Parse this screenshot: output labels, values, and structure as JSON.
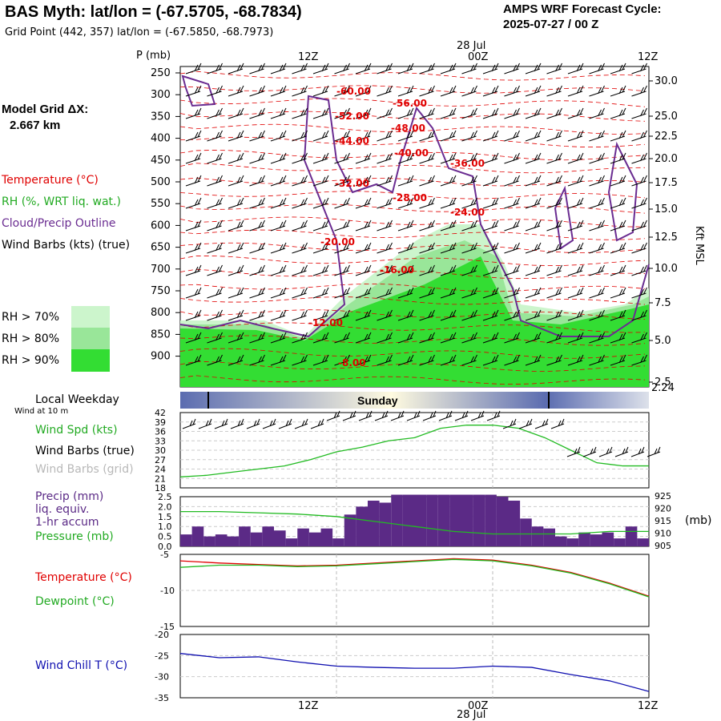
{
  "header": {
    "title": "BAS Myth:  lat/lon = (-67.5705, -68.7834)",
    "grid_point": "Grid Point (442, 357) lat/lon = (-67.5850, -68.7973)",
    "cycle_line1": "AMPS WRF Forecast Cycle:",
    "cycle_line2": "2025-07-27 / 00  Z"
  },
  "left_panel": {
    "model_grid_line1": "Model Grid ΔX:",
    "model_grid_line2": "2.667 km",
    "legend_temperature": "Temperature (°C)",
    "legend_rh": "RH (%, WRT liq. wat.)",
    "legend_cloud": "Cloud/Precip Outline",
    "legend_wind": "Wind Barbs (kts) (true)",
    "rh70": "RH > 70%",
    "rh80": "RH > 80%",
    "rh90": "RH > 90%"
  },
  "colors": {
    "temperature": "#e00000",
    "rh70": "#ccf5cc",
    "rh80": "#99e699",
    "rh90": "#33dd33",
    "cloud": "#6a2c91",
    "dewpoint": "#22bb22",
    "windchill": "#1010b0",
    "precip": "#5b2a86",
    "weekday_bar": "#5b6cb0"
  },
  "time_axis": {
    "date_label": "28 Jul",
    "ticks": [
      "12Z",
      "00Z",
      "12Z"
    ]
  },
  "sounding": {
    "pressure_unit_label": "P (mb)",
    "pressure_ticks": [
      "250",
      "300",
      "350",
      "400",
      "450",
      "500",
      "550",
      "600",
      "650",
      "700",
      "750",
      "800",
      "850",
      "900"
    ],
    "height_ticks": [
      "30.0",
      "25.0",
      "22.5",
      "20.0",
      "17.5",
      "15.0",
      "12.5",
      "10.0",
      "7.5",
      "5.0",
      "2.5"
    ],
    "height_unit_label": "Kft MSL",
    "surface_height": "2.24"
  },
  "weekday": {
    "title": "Local Weekday",
    "wind_note": "Wind at 10 m",
    "day": "Sunday"
  },
  "wind_panel": {
    "label_speed": "Wind Spd (kts)",
    "label_true": "Wind Barbs (true)",
    "label_grid": "Wind Barbs (grid)",
    "yticks": [
      "42",
      "39",
      "36",
      "33",
      "30",
      "27",
      "24",
      "21",
      "18"
    ]
  },
  "precip_panel": {
    "label1": "Precip (mm)",
    "label2": "liq. equiv.",
    "label3": "1-hr accum",
    "label4": "Pressure (mb)",
    "yticks_left": [
      "2.5",
      "2.0",
      "1.5",
      "1.0",
      "0.5",
      "0.0"
    ],
    "yticks_right": [
      "925",
      "920",
      "915",
      "910",
      "905"
    ],
    "right_unit": "(mb)"
  },
  "temp_panel": {
    "label_temp": "Temperature (°C)",
    "label_dew": "Dewpoint (°C)",
    "yticks": [
      "-5",
      "-10",
      "-15"
    ]
  },
  "chill_panel": {
    "label": "Wind Chill T (°C)",
    "yticks": [
      "-20",
      "-25",
      "-30",
      "-35"
    ]
  },
  "chart_data": [
    {
      "type": "line",
      "title": "Wind Spd (kts)",
      "x_hours": [
        0,
        2,
        4,
        6,
        8,
        10,
        12,
        14,
        16,
        18,
        20,
        22,
        24,
        26,
        28,
        30,
        32,
        34,
        36
      ],
      "values": [
        21.5,
        22,
        23,
        24,
        25,
        27,
        29.5,
        31,
        33,
        34,
        37,
        38,
        38,
        37,
        34,
        30,
        26,
        25,
        25
      ],
      "ylim": [
        18,
        42
      ]
    },
    {
      "type": "bar",
      "title": "Precip (mm) liq. equiv. 1-hr accum",
      "values": [
        0.6,
        1.0,
        0.5,
        0.6,
        0.5,
        1.0,
        0.7,
        1.0,
        0.8,
        0.4,
        0.9,
        0.7,
        0.9,
        0.4,
        1.6,
        2.0,
        2.3,
        2.2,
        2.6,
        2.6,
        2.6,
        2.6,
        2.6,
        2.6,
        2.6,
        2.6,
        2.6,
        2.5,
        2.3,
        1.4,
        1.0,
        0.9,
        0.5,
        0.4,
        0.7,
        0.6,
        0.7,
        0.4,
        1.0,
        0.4
      ],
      "ylim": [
        0,
        2.5
      ]
    },
    {
      "type": "line",
      "title": "Pressure (mb)",
      "x_hours": [
        0,
        3,
        6,
        9,
        12,
        15,
        18,
        21,
        24,
        27,
        30,
        33,
        36
      ],
      "values": [
        919,
        919,
        918.5,
        918,
        917,
        915,
        913,
        911,
        910,
        910,
        910,
        911,
        911
      ],
      "ylim": [
        905,
        925
      ]
    },
    {
      "type": "line",
      "title": "Temperature / Dewpoint (°C)",
      "x_hours": [
        0,
        3,
        6,
        9,
        12,
        15,
        18,
        21,
        24,
        27,
        30,
        33,
        36
      ],
      "series": [
        {
          "name": "Temperature (°C)",
          "values": [
            -5.9,
            -6.2,
            -6.4,
            -6.6,
            -6.5,
            -6.2,
            -5.9,
            -5.6,
            -5.8,
            -6.5,
            -7.5,
            -9.0,
            -10.8
          ]
        },
        {
          "name": "Dewpoint (°C)",
          "values": [
            -6.8,
            -6.5,
            -6.5,
            -6.7,
            -6.6,
            -6.3,
            -6.0,
            -5.7,
            -5.9,
            -6.6,
            -7.6,
            -9.1,
            -10.9
          ]
        }
      ],
      "ylim": [
        -15,
        -5
      ]
    },
    {
      "type": "line",
      "title": "Wind Chill T (°C)",
      "x_hours": [
        0,
        3,
        6,
        9,
        12,
        15,
        18,
        21,
        24,
        27,
        30,
        33,
        36
      ],
      "values": [
        -24.5,
        -25.5,
        -25.3,
        -26.5,
        -27.5,
        -27.8,
        -28.0,
        -28.0,
        -27.5,
        -27.8,
        -29.5,
        -31.0,
        -33.5
      ],
      "ylim": [
        -35,
        -20
      ]
    }
  ]
}
